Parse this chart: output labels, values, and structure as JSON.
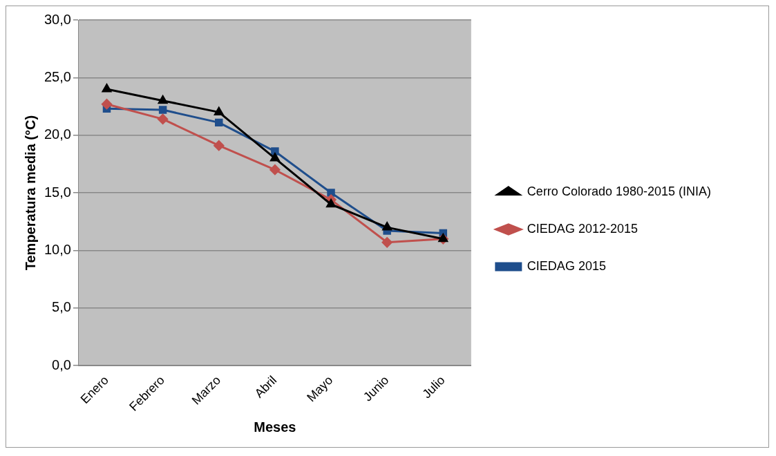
{
  "chart_data": {
    "type": "line",
    "xlabel": "Meses",
    "ylabel": "Temperatura media (°C)",
    "categories": [
      "Enero",
      "Febrero",
      "Marzo",
      "Abril",
      "Mayo",
      "Junio",
      "Julio"
    ],
    "series": [
      {
        "name": "Cerro Colorado 1980-2015 (INIA)",
        "color": "#000000",
        "marker": "triangle",
        "values": [
          24.0,
          23.0,
          22.0,
          18.0,
          14.0,
          12.0,
          11.0
        ]
      },
      {
        "name": "CIEDAG 2012-2015",
        "color": "#c0504d",
        "marker": "diamond",
        "values": [
          22.7,
          21.4,
          19.1,
          17.0,
          14.4,
          10.7,
          11.0
        ]
      },
      {
        "name": "CIEDAG 2015",
        "color": "#1f4e8c",
        "marker": "square",
        "values": [
          22.3,
          22.2,
          21.1,
          18.6,
          15.0,
          11.7,
          11.5
        ]
      }
    ],
    "ylim": [
      0,
      30
    ],
    "yticks": [
      {
        "value": 0,
        "label": "0,0"
      },
      {
        "value": 5,
        "label": "5,0"
      },
      {
        "value": 10,
        "label": "10,0"
      },
      {
        "value": 15,
        "label": "15,0"
      },
      {
        "value": 20,
        "label": "20,0"
      },
      {
        "value": 25,
        "label": "25,0"
      },
      {
        "value": 30,
        "label": "30,0"
      }
    ],
    "grid": "y",
    "legend": "right"
  }
}
